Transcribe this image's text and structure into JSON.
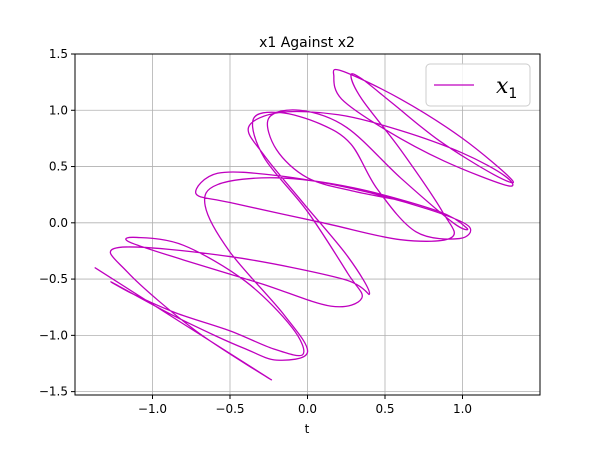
{
  "chart_data": {
    "type": "line",
    "title": "x1 Against x2",
    "xlabel": "t",
    "ylabel": "",
    "xlim": [
      -1.5,
      1.5
    ],
    "ylim": [
      -1.53,
      1.5
    ],
    "xticks": [
      -1.0,
      -0.5,
      0.0,
      0.5,
      1.0
    ],
    "xtick_labels": [
      "−1.0",
      "−0.5",
      "0.0",
      "0.5",
      "1.0"
    ],
    "yticks": [
      -1.5,
      -1.0,
      -0.5,
      0.0,
      0.5,
      1.0,
      1.5
    ],
    "ytick_labels": [
      "−1.5",
      "−1.0",
      "−0.5",
      "0.0",
      "0.5",
      "1.0",
      "1.5"
    ],
    "grid": true,
    "legend_position": "top-right",
    "series": [
      {
        "name": "x_1",
        "label_main": "x",
        "label_sub": "1",
        "color": "#bf00bf",
        "points": [
          [
            -1.37,
            -0.4
          ],
          [
            -0.25,
            -1.38
          ],
          [
            -0.72,
            -0.96
          ],
          [
            -1.16,
            -0.44
          ],
          [
            -1.22,
            -0.22
          ],
          [
            -0.5,
            -0.3
          ],
          [
            0.23,
            -0.5
          ],
          [
            0.4,
            -0.63
          ],
          [
            0.26,
            -0.3
          ],
          [
            -0.03,
            0.18
          ],
          [
            -0.28,
            0.6
          ],
          [
            -0.38,
            0.85
          ],
          [
            -0.18,
            0.98
          ],
          [
            0.2,
            0.96
          ],
          [
            0.6,
            0.82
          ],
          [
            1.0,
            0.62
          ],
          [
            1.27,
            0.42
          ],
          [
            1.29,
            0.33
          ],
          [
            0.88,
            0.55
          ],
          [
            0.5,
            0.83
          ],
          [
            0.22,
            1.1
          ],
          [
            0.17,
            1.3
          ],
          [
            0.22,
            1.35
          ],
          [
            0.6,
            1.1
          ],
          [
            1.0,
            0.75
          ],
          [
            1.32,
            0.38
          ],
          [
            1.2,
            0.43
          ],
          [
            0.85,
            0.73
          ],
          [
            0.55,
            1.06
          ],
          [
            0.35,
            1.28
          ],
          [
            0.28,
            1.31
          ],
          [
            0.35,
            1.1
          ],
          [
            0.6,
            0.65
          ],
          [
            0.87,
            0.1
          ],
          [
            0.93,
            -0.13
          ],
          [
            0.6,
            -0.15
          ],
          [
            0.1,
            0.0
          ],
          [
            -0.5,
            0.18
          ],
          [
            -0.72,
            0.26
          ],
          [
            -0.58,
            0.44
          ],
          [
            -0.2,
            0.42
          ],
          [
            0.3,
            0.3
          ],
          [
            0.78,
            0.12
          ],
          [
            1.04,
            -0.03
          ],
          [
            0.98,
            -0.14
          ],
          [
            0.7,
            -0.08
          ],
          [
            0.45,
            0.3
          ],
          [
            0.28,
            0.7
          ],
          [
            0.08,
            0.88
          ],
          [
            -0.18,
            0.98
          ],
          [
            -0.35,
            0.92
          ],
          [
            -0.28,
            0.58
          ],
          [
            0.0,
            0.1
          ],
          [
            0.26,
            -0.45
          ],
          [
            0.35,
            -0.67
          ],
          [
            0.15,
            -0.74
          ],
          [
            -0.3,
            -0.54
          ],
          [
            -0.8,
            -0.33
          ],
          [
            -1.15,
            -0.17
          ],
          [
            -1.1,
            -0.13
          ],
          [
            -0.8,
            -0.2
          ],
          [
            -0.4,
            -0.52
          ],
          [
            -0.1,
            -0.93
          ],
          [
            -0.03,
            -1.17
          ],
          [
            -0.22,
            -1.12
          ],
          [
            -0.5,
            -0.96
          ],
          [
            -0.85,
            -0.8
          ],
          [
            -1.13,
            -0.63
          ],
          [
            -1.26,
            -0.53
          ],
          [
            -0.9,
            -0.8
          ],
          [
            -0.6,
            -1.0
          ],
          [
            -0.4,
            -1.12
          ],
          [
            -0.2,
            -1.22
          ],
          [
            0.0,
            -1.15
          ],
          [
            -0.15,
            -0.82
          ],
          [
            -0.5,
            -0.26
          ],
          [
            -0.66,
            0.15
          ],
          [
            -0.58,
            0.34
          ],
          [
            -0.2,
            0.4
          ],
          [
            0.3,
            0.31
          ],
          [
            0.85,
            0.1
          ],
          [
            1.03,
            -0.05
          ],
          [
            0.94,
            0.0
          ],
          [
            0.6,
            0.4
          ],
          [
            0.25,
            0.85
          ],
          [
            -0.05,
            1.0
          ],
          [
            -0.25,
            0.93
          ],
          [
            -0.2,
            0.65
          ],
          [
            0.0,
            0.4
          ],
          [
            0.3,
            0.28
          ],
          [
            0.6,
            0.2
          ]
        ]
      }
    ]
  }
}
